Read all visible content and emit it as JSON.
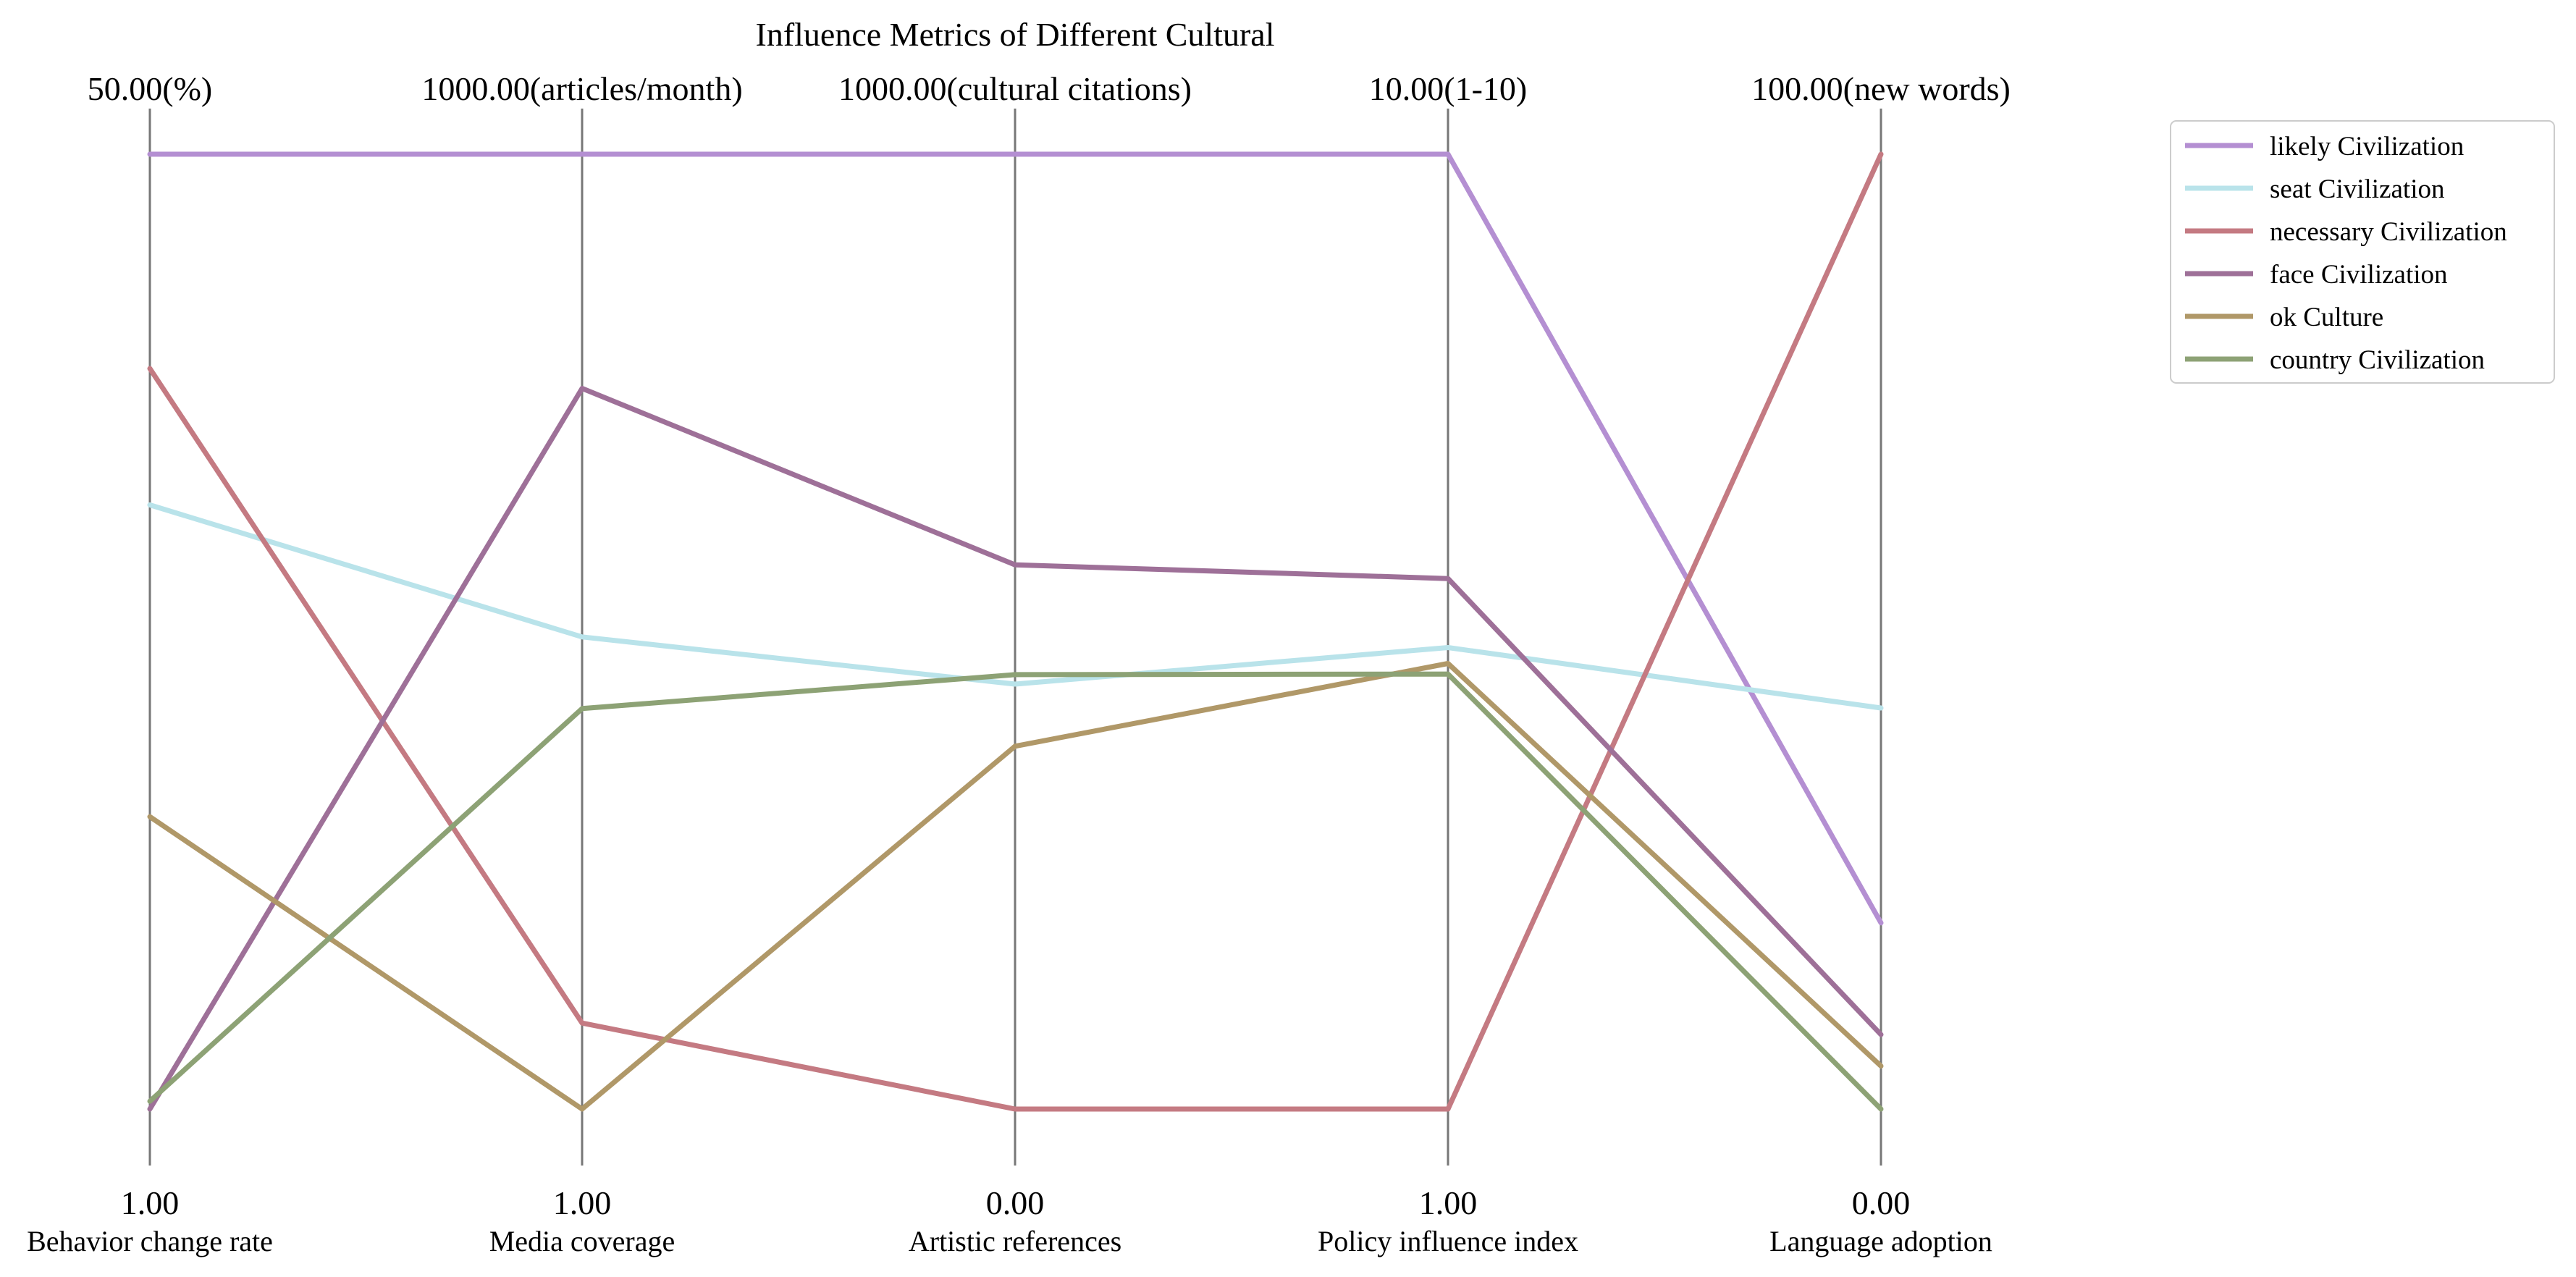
{
  "chart_data": {
    "type": "parallel-coordinates",
    "title": "Influence Metrics of Different Cultural",
    "axes": [
      {
        "name": "Behavior change rate",
        "min": 1.0,
        "max": 50.0,
        "unit": "%",
        "min_label": "1.00",
        "max_label": "50.00(%)"
      },
      {
        "name": "Media coverage",
        "min": 1.0,
        "max": 1000.0,
        "unit": "articles/month",
        "min_label": "1.00",
        "max_label": "1000.00(articles/month)"
      },
      {
        "name": "Artistic references",
        "min": 0.0,
        "max": 1000.0,
        "unit": "cultural citations",
        "min_label": "0.00",
        "max_label": "1000.00(cultural citations)"
      },
      {
        "name": "Policy influence index",
        "min": 1.0,
        "max": 10.0,
        "unit": "1-10",
        "min_label": "1.00",
        "max_label": "10.00(1-10)"
      },
      {
        "name": "Language adoption",
        "min": 0.0,
        "max": 100.0,
        "unit": "new words",
        "min_label": "0.00",
        "max_label": "100.00(new words)"
      }
    ],
    "series": [
      {
        "name": "likely  Civilization",
        "color": "#b48fd2",
        "values": [
          50.0,
          1000.0,
          1000.0,
          10.0,
          19.5
        ]
      },
      {
        "name": "seat  Civilization",
        "color": "#b9e3ea",
        "values": [
          32.0,
          495.0,
          445.0,
          5.35,
          42.0
        ]
      },
      {
        "name": "necessary  Civilization",
        "color": "#c47a82",
        "values": [
          39.0,
          91.0,
          0.0,
          1.0,
          100.0
        ]
      },
      {
        "name": "face  Civilization",
        "color": "#9e7098",
        "values": [
          1.0,
          755.0,
          570.0,
          6.0,
          7.8
        ]
      },
      {
        "name": "ok  Culture",
        "color": "#b09868",
        "values": [
          16.0,
          1.0,
          380.0,
          5.2,
          4.5
        ]
      },
      {
        "name": "country  Civilization",
        "color": "#8da275",
        "values": [
          1.4,
          420.0,
          455.0,
          5.1,
          0.0
        ]
      }
    ],
    "legend_position": "top-right",
    "grid": false
  }
}
